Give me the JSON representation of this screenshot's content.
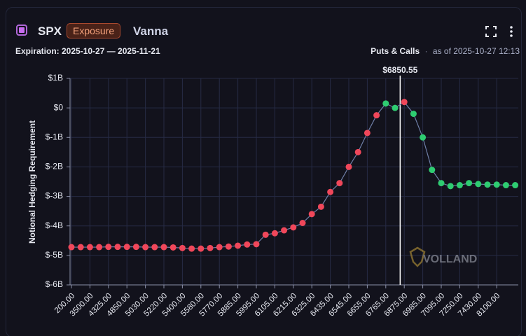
{
  "header": {
    "symbol": "SPX",
    "badge": "Exposure",
    "title": "Vanna",
    "expiration": "Expiration: 2025-10-27 — 2025-11-21",
    "scope": "Puts & Calls",
    "separator": "·",
    "as_of": "as of 2025-10-27 12:13"
  },
  "watermark": "VOLLAND",
  "chart_data": {
    "type": "scatter-line",
    "y_label": "Notional Hedging Requirement",
    "categories": [
      "200.00",
      null,
      "3500.00",
      null,
      "4325.00",
      null,
      "4850.00",
      null,
      "5030.00",
      null,
      "5220.00",
      null,
      "5400.00",
      null,
      "5580.00",
      null,
      "5770.00",
      null,
      "5885.00",
      null,
      "5995.00",
      null,
      "6105.00",
      null,
      "6215.00",
      null,
      "6325.00",
      null,
      "6435.00",
      null,
      "6545.00",
      null,
      "6655.00",
      null,
      "6765.00",
      null,
      "6875.00",
      null,
      "6985.00",
      null,
      "7095.00",
      null,
      "7250.00",
      null,
      "7430.00",
      null,
      "8100.00",
      null,
      null
    ],
    "values": [
      -4720000000,
      -4720000000,
      -4720000000,
      -4720000000,
      -4710000000,
      -4710000000,
      -4710000000,
      -4710000000,
      -4720000000,
      -4720000000,
      -4720000000,
      -4730000000,
      -4750000000,
      -4770000000,
      -4770000000,
      -4750000000,
      -4720000000,
      -4700000000,
      -4670000000,
      -4630000000,
      -4620000000,
      -4300000000,
      -4250000000,
      -4150000000,
      -4050000000,
      -3900000000,
      -3600000000,
      -3350000000,
      -2850000000,
      -2550000000,
      -2000000000,
      -1500000000,
      -850000000,
      -250000000,
      150000000,
      0,
      200000000,
      -200000000,
      -1000000000,
      -2100000000,
      -2550000000,
      -2650000000,
      -2620000000,
      -2550000000,
      -2580000000,
      -2600000000,
      -2600000000,
      -2620000000,
      -2620000000
    ],
    "point_colors": [
      "#f0475a",
      "#f0475a",
      "#f0475a",
      "#f0475a",
      "#f0475a",
      "#f0475a",
      "#f0475a",
      "#f0475a",
      "#f0475a",
      "#f0475a",
      "#f0475a",
      "#f0475a",
      "#f0475a",
      "#f0475a",
      "#f0475a",
      "#f0475a",
      "#f0475a",
      "#f0475a",
      "#f0475a",
      "#f0475a",
      "#f0475a",
      "#f0475a",
      "#f0475a",
      "#f0475a",
      "#f0475a",
      "#f0475a",
      "#f0475a",
      "#f0475a",
      "#f0475a",
      "#f0475a",
      "#f0475a",
      "#f0475a",
      "#f0475a",
      "#f0475a",
      "#2ecc71",
      "#2ecc71",
      "#f0475a",
      "#2ecc71",
      "#2ecc71",
      "#2ecc71",
      "#2ecc71",
      "#2ecc71",
      "#2ecc71",
      "#2ecc71",
      "#2ecc71",
      "#2ecc71",
      "#2ecc71",
      "#2ecc71",
      "#2ecc71"
    ],
    "line_color": "#6f7fa8",
    "ylim": [
      -6000000000,
      1000000000
    ],
    "yticks": [
      {
        "value": 1000000000,
        "label": "$1B"
      },
      {
        "value": 0,
        "label": "$0"
      },
      {
        "value": -1000000000,
        "label": "$-1B"
      },
      {
        "value": -2000000000,
        "label": "$-2B"
      },
      {
        "value": -3000000000,
        "label": "$-3B"
      },
      {
        "value": -4000000000,
        "label": "$-4B"
      },
      {
        "value": -5000000000,
        "label": "$-5B"
      },
      {
        "value": -6000000000,
        "label": "$-6B"
      }
    ],
    "price_line": {
      "value": 6850.55,
      "label": "$6850.55"
    },
    "grid": true
  }
}
